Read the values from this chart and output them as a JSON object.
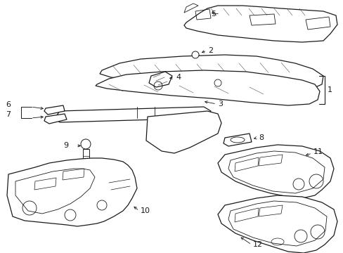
{
  "background_color": "#ffffff",
  "line_color": "#1a1a1a",
  "fig_width": 4.89,
  "fig_height": 3.6,
  "dpi": 100,
  "label_fontsize": 7.5,
  "border_color": "#cccccc"
}
